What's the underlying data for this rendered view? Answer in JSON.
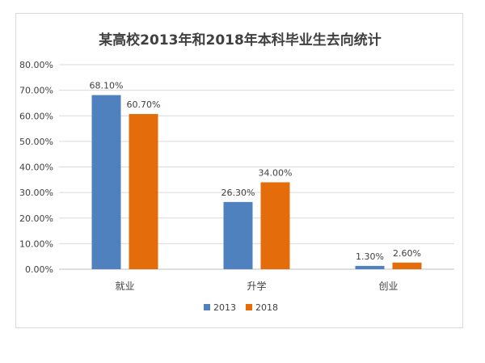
{
  "chart_data": {
    "type": "bar",
    "title": "某高校2013年和2018年本科毕业生去向统计",
    "categories": [
      "就业",
      "升学",
      "创业"
    ],
    "series": [
      {
        "name": "2013",
        "values": [
          68.1,
          26.3,
          1.3
        ],
        "labels": [
          "68.10%",
          "26.30%",
          "1.30%"
        ],
        "color": "#4e81bd"
      },
      {
        "name": "2018",
        "values": [
          60.7,
          34.0,
          2.6
        ],
        "labels": [
          "60.70%",
          "34.00%",
          "2.60%"
        ],
        "color": "#e46c0a"
      }
    ],
    "ylim": [
      0,
      80
    ],
    "yticks": [
      "0.00%",
      "10.00%",
      "20.00%",
      "30.00%",
      "40.00%",
      "50.00%",
      "60.00%",
      "70.00%",
      "80.00%"
    ],
    "grid": true,
    "legend": "bottom"
  }
}
